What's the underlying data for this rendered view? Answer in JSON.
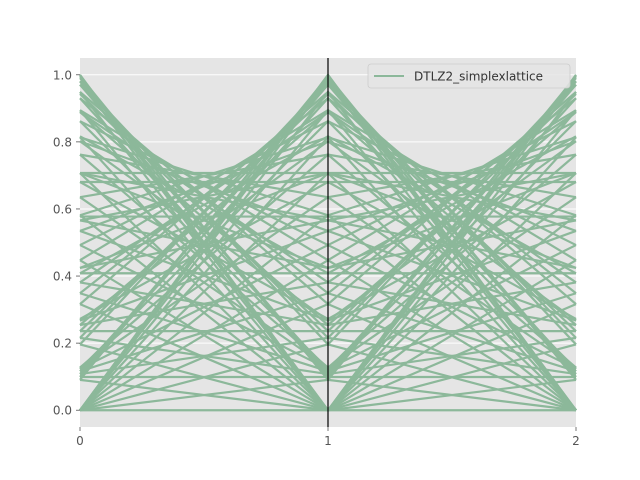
{
  "chart_data": {
    "type": "line",
    "subtype": "parallel-coordinates",
    "axes": [
      0,
      1,
      2
    ],
    "xticks": [
      "0",
      "1",
      "2"
    ],
    "yticks": [
      "0.0",
      "0.2",
      "0.4",
      "0.6",
      "0.8",
      "1.0"
    ],
    "ylim": [
      -0.05,
      1.05
    ],
    "xlim": [
      0,
      2
    ],
    "grid": true,
    "background": "#e5e5e5",
    "grid_color": "#ffffff",
    "line_color": "#8cb89a",
    "axis_line_color": "#000000",
    "legend": {
      "position": "top-right",
      "entries": [
        "DTLZ2_simplexlattice"
      ]
    },
    "series": [
      {
        "name": "DTLZ2_simplexlattice",
        "generator": "DTLZ2 simplex-lattice Pareto front, 3 objectives, 12 divisions"
      }
    ]
  }
}
